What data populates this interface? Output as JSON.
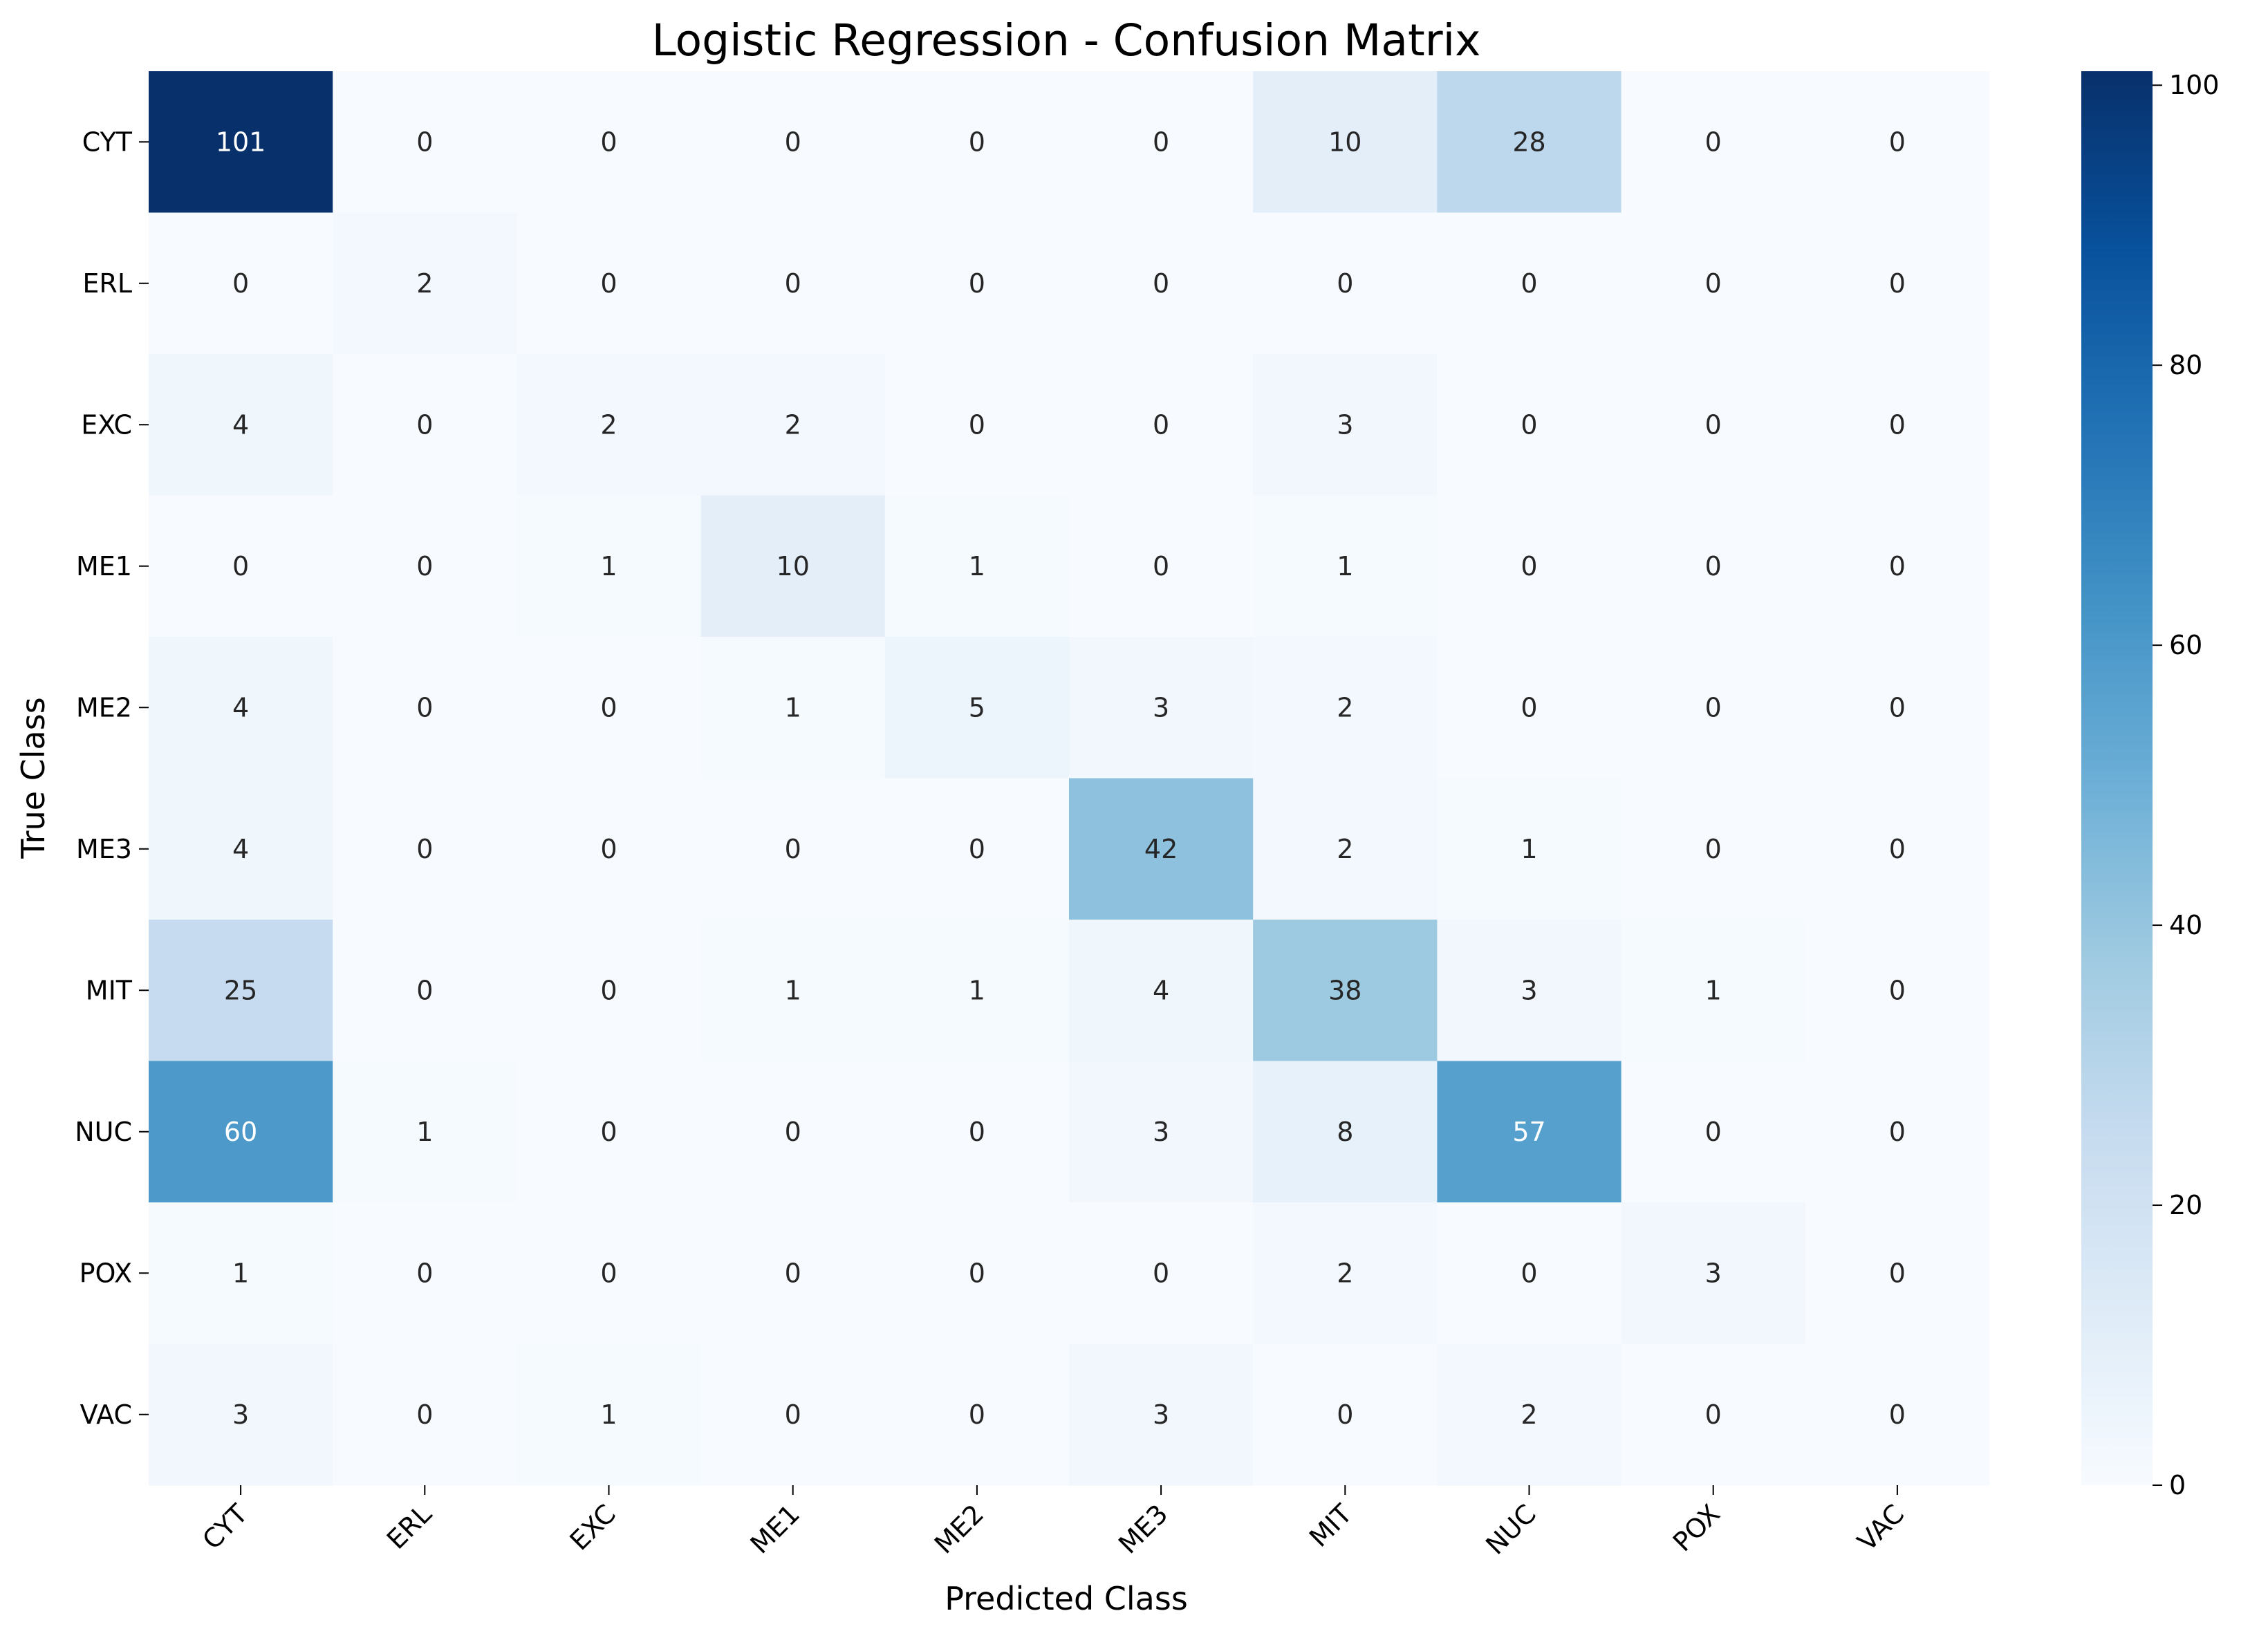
{
  "chart_data": {
    "type": "heatmap",
    "title": "Logistic Regression - Confusion Matrix",
    "xlabel": "Predicted Class",
    "ylabel": "True Class",
    "x_categories": [
      "CYT",
      "ERL",
      "EXC",
      "ME1",
      "ME2",
      "ME3",
      "MIT",
      "NUC",
      "POX",
      "VAC"
    ],
    "y_categories": [
      "CYT",
      "ERL",
      "EXC",
      "ME1",
      "ME2",
      "ME3",
      "MIT",
      "NUC",
      "POX",
      "VAC"
    ],
    "values": [
      [
        101,
        0,
        0,
        0,
        0,
        0,
        10,
        28,
        0,
        0
      ],
      [
        0,
        2,
        0,
        0,
        0,
        0,
        0,
        0,
        0,
        0
      ],
      [
        4,
        0,
        2,
        2,
        0,
        0,
        3,
        0,
        0,
        0
      ],
      [
        0,
        0,
        1,
        10,
        1,
        0,
        1,
        0,
        0,
        0
      ],
      [
        4,
        0,
        0,
        1,
        5,
        3,
        2,
        0,
        0,
        0
      ],
      [
        4,
        0,
        0,
        0,
        0,
        42,
        2,
        1,
        0,
        0
      ],
      [
        25,
        0,
        0,
        1,
        1,
        4,
        38,
        3,
        1,
        0
      ],
      [
        60,
        1,
        0,
        0,
        0,
        3,
        8,
        57,
        0,
        0
      ],
      [
        1,
        0,
        0,
        0,
        0,
        0,
        2,
        0,
        3,
        0
      ],
      [
        3,
        0,
        1,
        0,
        0,
        3,
        0,
        2,
        0,
        0
      ]
    ],
    "colormap": "Blues",
    "colorbar": {
      "range": [
        0,
        101
      ],
      "ticks": [
        0,
        20,
        40,
        60,
        80,
        100
      ]
    },
    "x_tick_rotation_deg": 45,
    "legend": "colorbar-right"
  }
}
